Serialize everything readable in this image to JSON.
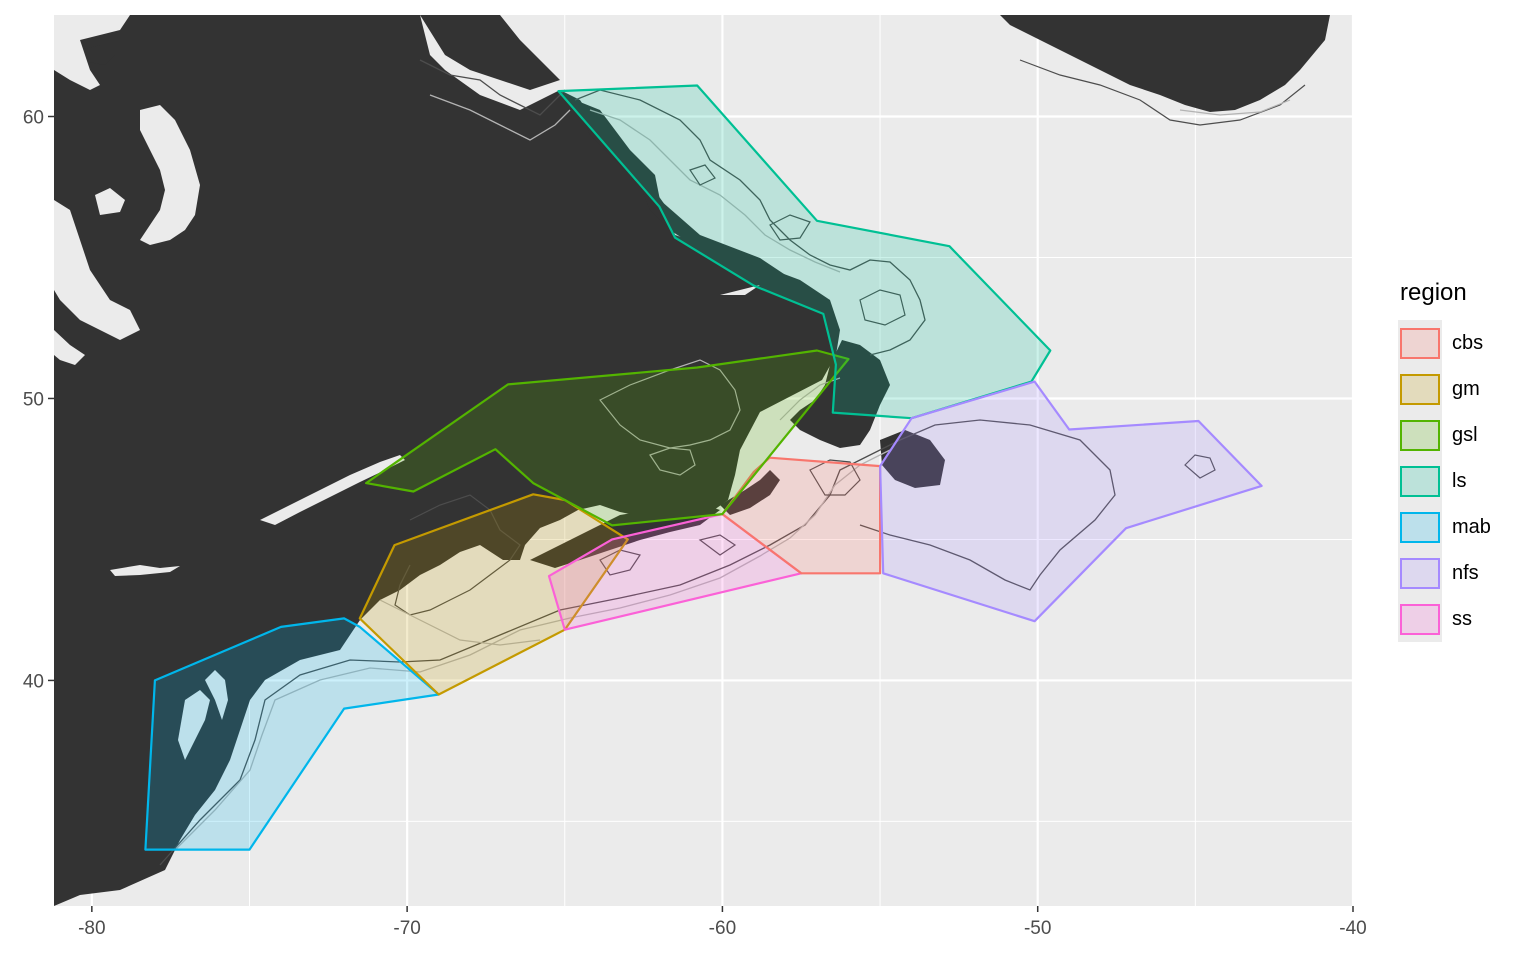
{
  "map": {
    "x_ticks": [
      {
        "value": -80,
        "label": "-80"
      },
      {
        "value": -70,
        "label": "-70"
      },
      {
        "value": -60,
        "label": "-60"
      },
      {
        "value": -50,
        "label": "-50"
      },
      {
        "value": -40,
        "label": "-40"
      }
    ],
    "y_ticks": [
      {
        "value": 40,
        "label": "40"
      },
      {
        "value": 50,
        "label": "50"
      },
      {
        "value": 60,
        "label": "60"
      }
    ],
    "x_range": [
      -81.2,
      -40.0
    ],
    "y_range": [
      32.0,
      63.6
    ],
    "background_color": "#ebebeb",
    "land_color": "#333333",
    "grid": true,
    "legend_position": "right"
  },
  "legend": {
    "title": "region",
    "items": [
      {
        "key": "cbs",
        "label": "cbs",
        "color": "#F8766D"
      },
      {
        "key": "gm",
        "label": "gm",
        "color": "#C49A00"
      },
      {
        "key": "gsl",
        "label": "gsl",
        "color": "#53B400"
      },
      {
        "key": "ls",
        "label": "ls",
        "color": "#00C094"
      },
      {
        "key": "mab",
        "label": "mab",
        "color": "#00B6EB"
      },
      {
        "key": "nfs",
        "label": "nfs",
        "color": "#A58AFF"
      },
      {
        "key": "ss",
        "label": "ss",
        "color": "#FB61D7"
      }
    ]
  },
  "regions": [
    {
      "name": "mab",
      "color": "#00B6EB",
      "coords": [
        [
          -78.3,
          34.0
        ],
        [
          -75.0,
          34.0
        ],
        [
          -72.0,
          39.0
        ],
        [
          -69.0,
          39.5
        ],
        [
          -71.5,
          41.9
        ],
        [
          -72.0,
          42.2
        ],
        [
          -74.0,
          41.9
        ],
        [
          -78.0,
          40.0
        ]
      ]
    },
    {
      "name": "gm",
      "color": "#C49A00",
      "coords": [
        [
          -71.5,
          42.2
        ],
        [
          -70.4,
          44.8
        ],
        [
          -66.0,
          46.6
        ],
        [
          -65.0,
          46.4
        ],
        [
          -63.0,
          45.0
        ],
        [
          -65.0,
          41.8
        ],
        [
          -69.0,
          39.5
        ]
      ]
    },
    {
      "name": "ss",
      "color": "#FB61D7",
      "coords": [
        [
          -65.5,
          43.7
        ],
        [
          -63.5,
          45.0
        ],
        [
          -60.0,
          45.9
        ],
        [
          -57.5,
          43.8
        ],
        [
          -65.0,
          41.8
        ]
      ]
    },
    {
      "name": "cbs",
      "color": "#F8766D",
      "coords": [
        [
          -60.0,
          45.9
        ],
        [
          -59.0,
          47.4
        ],
        [
          -58.5,
          47.9
        ],
        [
          -55.0,
          47.6
        ],
        [
          -55.0,
          43.8
        ],
        [
          -57.5,
          43.8
        ]
      ]
    },
    {
      "name": "gsl",
      "color": "#53B400",
      "coords": [
        [
          -71.3,
          47.0
        ],
        [
          -66.8,
          50.5
        ],
        [
          -60.8,
          51.1
        ],
        [
          -57.0,
          51.7
        ],
        [
          -56.0,
          51.4
        ],
        [
          -60.0,
          45.9
        ],
        [
          -63.5,
          45.5
        ],
        [
          -66.0,
          47.0
        ],
        [
          -67.2,
          48.2
        ],
        [
          -69.8,
          46.7
        ]
      ]
    },
    {
      "name": "ls",
      "color": "#00C094",
      "coords": [
        [
          -65.2,
          60.9
        ],
        [
          -60.8,
          61.1
        ],
        [
          -57.0,
          56.3
        ],
        [
          -52.8,
          55.4
        ],
        [
          -49.6,
          51.7
        ],
        [
          -50.2,
          50.6
        ],
        [
          -54.0,
          49.3
        ],
        [
          -56.5,
          49.5
        ],
        [
          -56.4,
          51.2
        ],
        [
          -56.8,
          53.0
        ],
        [
          -59.0,
          54.0
        ],
        [
          -61.5,
          55.7
        ],
        [
          -62.0,
          56.8
        ]
      ]
    },
    {
      "name": "nfs",
      "color": "#A58AFF",
      "coords": [
        [
          -55.0,
          47.6
        ],
        [
          -54.0,
          49.3
        ],
        [
          -50.1,
          50.6
        ],
        [
          -49.0,
          48.9
        ],
        [
          -44.9,
          49.2
        ],
        [
          -42.9,
          46.9
        ],
        [
          -47.2,
          45.4
        ],
        [
          -50.1,
          42.1
        ],
        [
          -54.9,
          43.8
        ]
      ]
    }
  ]
}
